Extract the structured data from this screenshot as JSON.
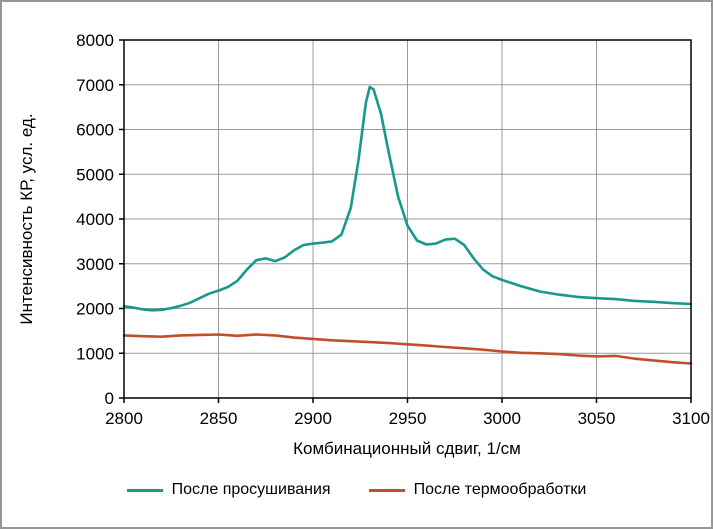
{
  "chart_data": {
    "type": "line",
    "title": "",
    "xlabel": "Комбинационный сдвиг, 1/см",
    "ylabel": "Интенсивность КР, усл. ед.",
    "xlim": [
      2800,
      3100
    ],
    "ylim": [
      0,
      8000
    ],
    "x_ticks": [
      2800,
      2850,
      2900,
      2950,
      3000,
      3050,
      3100
    ],
    "y_ticks": [
      0,
      1000,
      2000,
      3000,
      4000,
      5000,
      6000,
      7000,
      8000
    ],
    "grid": true,
    "grid_color": "#9a9a9a",
    "axis_color": "#000000",
    "legend_position": "bottom",
    "series": [
      {
        "name": "После просушивания",
        "color": "#17998c",
        "x": [
          2800,
          2805,
          2810,
          2815,
          2820,
          2825,
          2830,
          2835,
          2840,
          2845,
          2850,
          2855,
          2860,
          2865,
          2870,
          2875,
          2880,
          2885,
          2890,
          2895,
          2900,
          2905,
          2910,
          2915,
          2920,
          2924,
          2928,
          2930,
          2932,
          2936,
          2940,
          2945,
          2950,
          2955,
          2960,
          2965,
          2970,
          2975,
          2980,
          2985,
          2990,
          2995,
          3000,
          3010,
          3020,
          3030,
          3040,
          3050,
          3060,
          3070,
          3080,
          3090,
          3100
        ],
        "y": [
          2050,
          2020,
          1980,
          1960,
          1970,
          2010,
          2060,
          2130,
          2230,
          2330,
          2400,
          2480,
          2620,
          2870,
          3080,
          3120,
          3060,
          3140,
          3300,
          3420,
          3450,
          3470,
          3500,
          3650,
          4250,
          5300,
          6600,
          6950,
          6900,
          6350,
          5500,
          4500,
          3850,
          3520,
          3430,
          3450,
          3540,
          3560,
          3420,
          3120,
          2870,
          2720,
          2640,
          2500,
          2380,
          2310,
          2260,
          2230,
          2210,
          2170,
          2150,
          2120,
          2100
        ]
      },
      {
        "name": "После термообработки",
        "color": "#c24f2c",
        "x": [
          2800,
          2810,
          2820,
          2830,
          2840,
          2850,
          2860,
          2870,
          2880,
          2890,
          2900,
          2910,
          2920,
          2930,
          2940,
          2950,
          2960,
          2970,
          2980,
          2990,
          3000,
          3010,
          3020,
          3030,
          3040,
          3050,
          3060,
          3070,
          3080,
          3090,
          3100
        ],
        "y": [
          1400,
          1380,
          1370,
          1400,
          1410,
          1420,
          1390,
          1420,
          1400,
          1350,
          1320,
          1290,
          1270,
          1250,
          1230,
          1200,
          1170,
          1140,
          1110,
          1080,
          1040,
          1010,
          1000,
          980,
          950,
          930,
          940,
          880,
          840,
          800,
          770
        ]
      }
    ]
  }
}
